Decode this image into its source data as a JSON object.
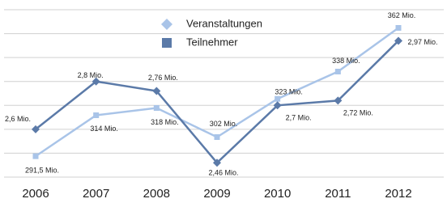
{
  "chart_data": {
    "type": "line",
    "categories": [
      "2006",
      "2007",
      "2008",
      "2009",
      "2010",
      "2011",
      "2012"
    ],
    "series": [
      {
        "name": "Veranstaltungen",
        "color": "#a9c4e8",
        "values": [
          291.5,
          314,
          318,
          302,
          323,
          338,
          362
        ],
        "value_labels": [
          "291,5 Mio.",
          "314 Mio.",
          "318 Mio.",
          "302 Mio.",
          "323 Mio.",
          "338 Mio.",
          "362 Mio."
        ]
      },
      {
        "name": "Teilnehmer",
        "color": "#5b7aa8",
        "axis": "y2",
        "values": [
          2.6,
          2.8,
          2.76,
          2.46,
          2.7,
          2.72,
          2.97
        ],
        "value_labels": [
          "2,6 Mio.",
          "2,8 Mio.",
          "2,76 Mio.",
          "2,46 Mio.",
          "2,7 Mio.",
          "2,72 Mio.",
          "2,97 Mio."
        ]
      }
    ],
    "ylim": [
      280,
      372
    ],
    "y2lim": [
      2.4,
      3.1
    ],
    "grid": true
  }
}
